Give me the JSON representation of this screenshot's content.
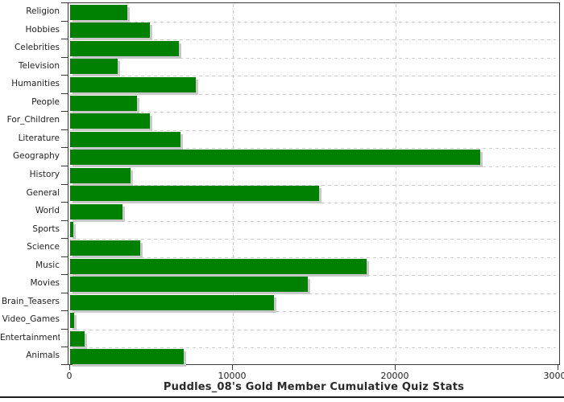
{
  "chart_data": {
    "type": "bar",
    "orientation": "horizontal",
    "title": "Puddles_08's Gold Member Cumulative Quiz Stats",
    "categories": [
      "Religion",
      "Hobbies",
      "Celebrities",
      "Television",
      "Humanities",
      "People",
      "For_Children",
      "Literature",
      "Geography",
      "History",
      "General",
      "World",
      "Sports",
      "Science",
      "Music",
      "Movies",
      "Brain_Teasers",
      "Video_Games",
      "Entertainment",
      "Animals"
    ],
    "values": [
      3500,
      4900,
      6700,
      2900,
      7700,
      4100,
      4900,
      6800,
      25200,
      3700,
      15300,
      3200,
      200,
      4300,
      18200,
      14600,
      12500,
      250,
      900,
      7000
    ],
    "xlabel": "",
    "ylabel": "",
    "xlim": [
      0,
      30000
    ],
    "x_ticks": [
      0,
      10000,
      20000,
      30000
    ],
    "x_tick_labels": [
      "0",
      "10000",
      "20000",
      "30000"
    ],
    "grid": true,
    "legend": false,
    "gridline_style": "dashed",
    "colors": {
      "bar": "#008000",
      "bar_shadow": "#c9c9c9",
      "gridline": "#cfcfcf",
      "axis": "#3a3a3a",
      "text": "#222222",
      "background": "#ffffff"
    }
  }
}
